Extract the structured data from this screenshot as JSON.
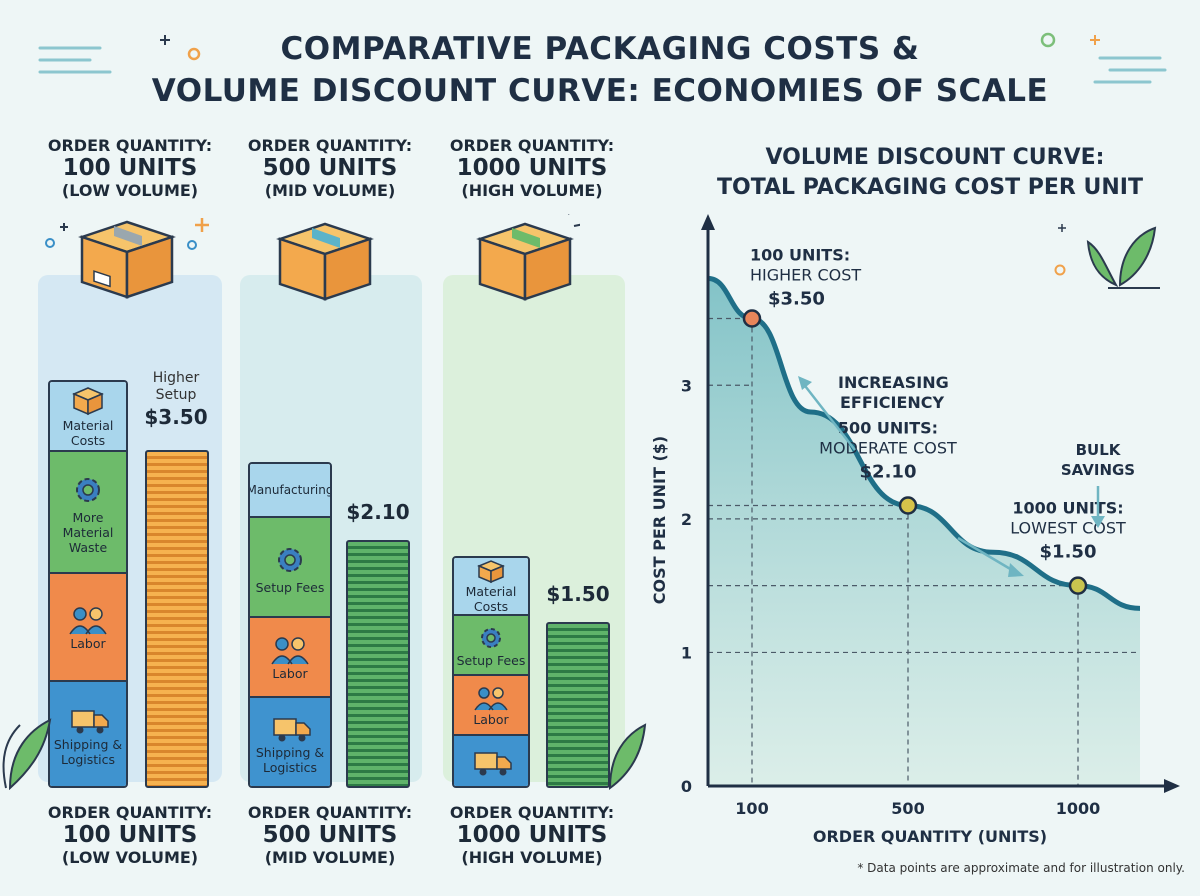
{
  "title": {
    "line1": "COMPARATIVE PACKAGING COSTS &",
    "line2": "VOLUME DISCOUNT CURVE: ECONOMIES OF SCALE"
  },
  "columns": [
    {
      "top": {
        "a": "ORDER QUANTITY:",
        "b": "100 UNITS",
        "c": "(LOW VOLUME)"
      },
      "bottom": {
        "a": "ORDER QUANTITY:",
        "b": "100 UNITS",
        "c": "(LOW VOLUME)"
      },
      "segments": [
        "Material Costs",
        "More Material Waste",
        "Labor",
        "Shipping & Logistics"
      ],
      "bar_note": "Higher Setup",
      "price": "$3.50",
      "bar_value": 3.5
    },
    {
      "top": {
        "a": "ORDER QUANTITY:",
        "b": "500 UNITS",
        "c": "(MID VOLUME)"
      },
      "bottom": {
        "a": "ORDER QUANTITY:",
        "b": "500 UNITS",
        "c": "(MID VOLUME)"
      },
      "segments": [
        "Manufacturing",
        "Setup Fees",
        "Labor",
        "Shipping & Logistics"
      ],
      "bar_note": "",
      "price": "$2.10",
      "bar_value": 2.1
    },
    {
      "top": {
        "a": "ORDER QUANTITY:",
        "b": "1000 UNITS",
        "c": "(HIGH VOLUME)"
      },
      "bottom": {
        "a": "ORDER QUANTITY:",
        "b": "1000 UNITS",
        "c": "(HIGH VOLUME)"
      },
      "segments": [
        "Material Costs",
        "Setup Fees",
        "Labor"
      ],
      "bar_note": "",
      "price": "$1.50",
      "bar_value": 1.5
    }
  ],
  "chart_data": {
    "type": "line",
    "title": "VOLUME DISCOUNT CURVE:",
    "subtitle": "TOTAL PACKAGING COST PER UNIT",
    "xlabel": "ORDER QUANTITY (UNITS)",
    "ylabel": "COST PER UNIT ($)",
    "x_ticks": [
      "100",
      "500",
      "1000"
    ],
    "y_ticks": [
      "0",
      "1",
      "2",
      "3"
    ],
    "ylim": [
      0,
      4.2
    ],
    "grid": "dashed at data points",
    "series": [
      {
        "values": [
          {
            "x": 0,
            "y": 3.8
          },
          {
            "x": 100,
            "y": 3.5
          },
          {
            "x": 250,
            "y": 2.8
          },
          {
            "x": 500,
            "y": 2.1
          },
          {
            "x": 750,
            "y": 1.75
          },
          {
            "x": 1000,
            "y": 1.5
          },
          {
            "x": 1150,
            "y": 1.33
          }
        ]
      }
    ],
    "points": [
      {
        "x": 100,
        "y": 3.5,
        "line1": "100 UNITS:",
        "line2": "HIGHER COST",
        "price": "$3.50",
        "color": "#e8855a"
      },
      {
        "x": 500,
        "y": 2.1,
        "line1": "500 UNITS:",
        "line2": "MODERATE COST",
        "price": "$2.10",
        "color": "#d7c34a"
      },
      {
        "x": 1000,
        "y": 1.5,
        "line1": "1000 UNITS:",
        "line2": "LOWEST COST",
        "price": "$1.50",
        "color": "#c9c44f"
      }
    ],
    "annotations": [
      {
        "line1": "INCREASING",
        "line2": "EFFICIENCY"
      },
      {
        "line1": "BULK",
        "line2": "SAVINGS"
      }
    ],
    "footnote": "* Data points are approximate and for illustration only."
  }
}
